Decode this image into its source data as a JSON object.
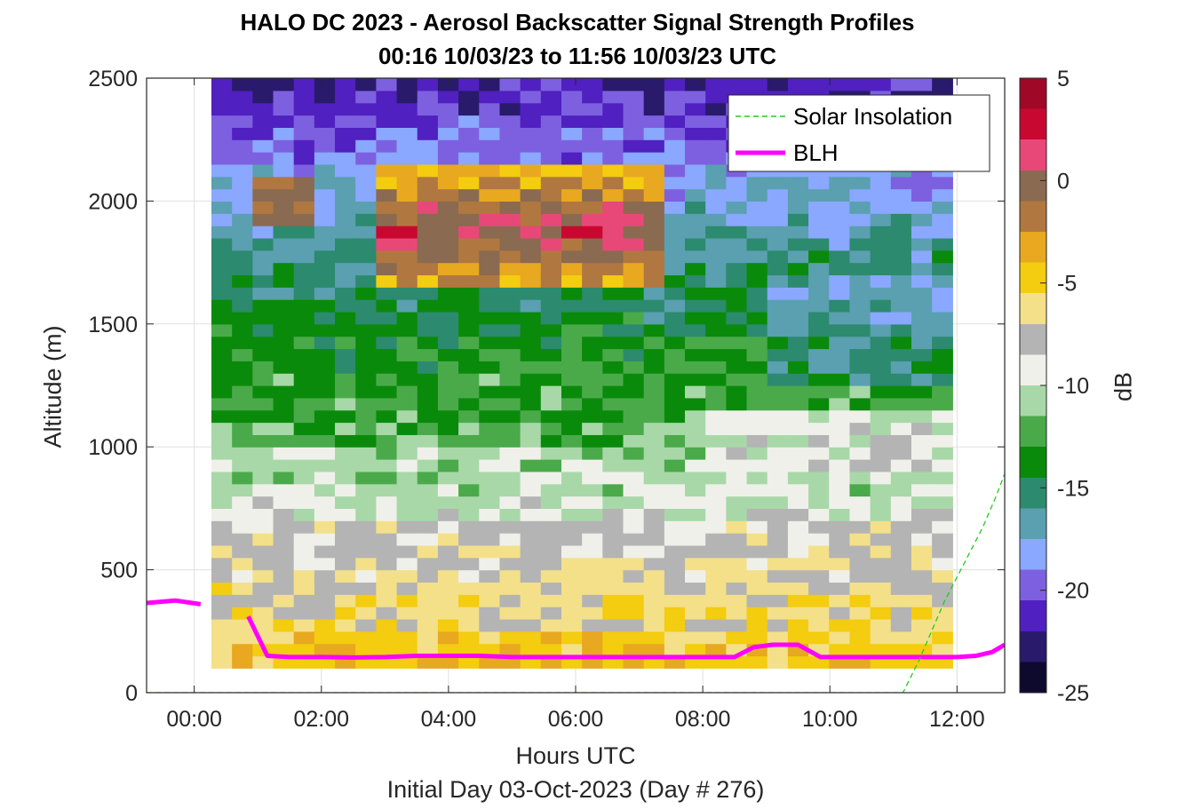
{
  "chart_data": {
    "type": "heatmap",
    "title": "HALO DC 2023 - Aerosol Backscatter Signal Strength Profiles",
    "subtitle": "00:16 10/03/23 to 11:56 10/03/23  UTC",
    "xlabel": "Hours UTC",
    "xlabel2": "Initial Day 03-Oct-2023 (Day # 276)",
    "ylabel": "Altitude (m)",
    "colorbar_label": "dB",
    "xlim": [
      -0.75,
      12.75
    ],
    "ylim": [
      0,
      2500
    ],
    "clim": [
      -25,
      5
    ],
    "x_ticks": [
      0,
      2,
      4,
      6,
      8,
      10,
      12
    ],
    "x_tick_labels": [
      "00:00",
      "02:00",
      "04:00",
      "06:00",
      "08:00",
      "10:00",
      "12:00"
    ],
    "y_ticks": [
      0,
      500,
      1000,
      1500,
      2000,
      2500
    ],
    "y_tick_labels": [
      "0",
      "500",
      "1000",
      "1500",
      "2000",
      "2500"
    ],
    "cbar_ticks": [
      5,
      0,
      -5,
      -10,
      -15,
      -20,
      -25
    ],
    "cbar_tick_labels": [
      "5",
      "0",
      "-5",
      "-10",
      "-15",
      "-20",
      "-25"
    ],
    "grid": true,
    "legend_position": "top-right",
    "legend": [
      "Solar Insolation",
      "BLH"
    ],
    "colors": {
      "BLH": "#ff00ff",
      "Solar Insolation": "#22cc22",
      "colormap": [
        "#0d0a2e",
        "#2a1a6b",
        "#5020c0",
        "#7d60e0",
        "#8aa8ff",
        "#5aa0b0",
        "#2c8a6e",
        "#0a8a0a",
        "#4aaa4a",
        "#a8d8a8",
        "#f0f0ea",
        "#b4b4b4",
        "#f4e088",
        "#f4cc10",
        "#e8a820",
        "#b07840",
        "#8a6a50",
        "#e84878",
        "#c80830",
        "#a00828"
      ]
    },
    "heatmap": {
      "time_range_hours": [
        0.27,
        11.93
      ],
      "alt_range_m": [
        100,
        2500
      ],
      "n_time": 36,
      "n_alt": 48,
      "description_of_values": "dB at each time/altitude; about -7 dB near surface to -9 dB at 700 m, -12 dB at 1000-1400 m, -15 dB at 1500-1700 m, -2 to 2 dB aerosol layer at 1700-2100 m between 03:00 and 07:00, and -19 to -23 dB above 2100 m"
    },
    "series": [
      {
        "name": "BLH",
        "x": [
          -0.75,
          -0.3,
          0.1,
          0.55,
          0.85,
          1.15,
          1.5,
          2.0,
          2.5,
          3.0,
          3.5,
          4.0,
          4.5,
          5.0,
          6.0,
          7.0,
          8.0,
          8.5,
          8.8,
          9.1,
          9.5,
          9.85,
          10.2,
          11.0,
          12.0,
          12.3,
          12.55,
          12.75
        ],
        "y": [
          365,
          375,
          360,
          null,
          310,
          150,
          145,
          145,
          143,
          145,
          150,
          150,
          150,
          145,
          145,
          145,
          145,
          145,
          185,
          195,
          195,
          145,
          145,
          145,
          145,
          150,
          165,
          195
        ]
      },
      {
        "name": "Solar Insolation",
        "x": [
          -0.75,
          11.15,
          11.4,
          11.6,
          11.8,
          12.0,
          12.2,
          12.4,
          12.6,
          12.75
        ],
        "y": [
          0,
          0,
          130,
          250,
          370,
          470,
          570,
          670,
          790,
          890
        ]
      }
    ]
  }
}
